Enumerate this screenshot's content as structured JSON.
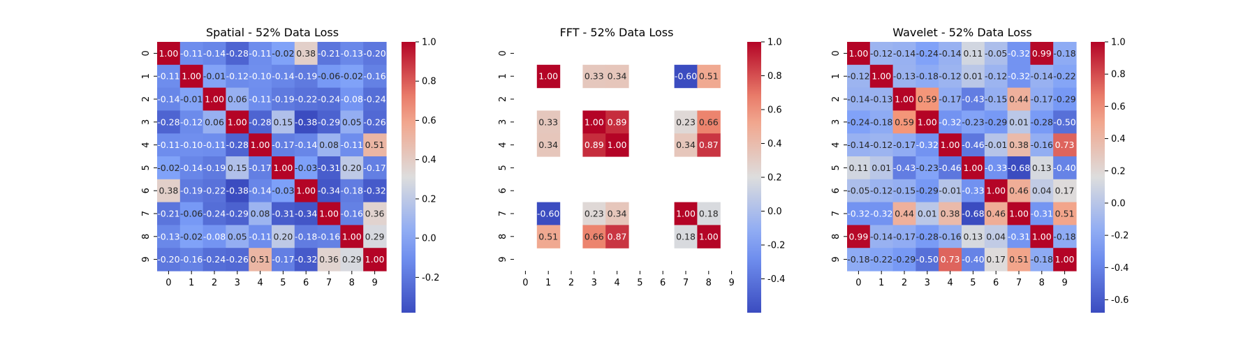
{
  "chart_data": [
    {
      "type": "heatmap",
      "title": "Spatial - 52% Data Loss",
      "x_categories": [
        "0",
        "1",
        "2",
        "3",
        "4",
        "5",
        "6",
        "7",
        "8",
        "9"
      ],
      "y_categories": [
        "0",
        "1",
        "2",
        "3",
        "4",
        "5",
        "6",
        "7",
        "8",
        "9"
      ],
      "colormap": "coolwarm",
      "vmin": -0.38,
      "vmax": 1.0,
      "colorbar_ticks": [
        "1.0",
        "0.8",
        "0.6",
        "0.4",
        "0.2",
        "0.0",
        "-0.2"
      ],
      "values": [
        [
          1.0,
          -0.11,
          -0.14,
          -0.28,
          -0.11,
          -0.02,
          0.38,
          -0.21,
          -0.13,
          -0.2
        ],
        [
          -0.11,
          1.0,
          -0.01,
          -0.12,
          -0.1,
          -0.14,
          -0.19,
          -0.06,
          -0.02,
          -0.16
        ],
        [
          -0.14,
          -0.01,
          1.0,
          0.06,
          -0.11,
          -0.19,
          -0.22,
          -0.24,
          -0.08,
          -0.24
        ],
        [
          -0.28,
          -0.12,
          0.06,
          1.0,
          -0.28,
          0.15,
          -0.38,
          -0.29,
          0.05,
          -0.26
        ],
        [
          -0.11,
          -0.1,
          -0.11,
          -0.28,
          1.0,
          -0.17,
          -0.14,
          0.08,
          -0.11,
          0.51
        ],
        [
          -0.02,
          -0.14,
          -0.19,
          0.15,
          -0.17,
          1.0,
          -0.03,
          -0.31,
          0.2,
          -0.17
        ],
        [
          0.38,
          -0.19,
          -0.22,
          -0.38,
          -0.14,
          -0.03,
          1.0,
          -0.34,
          -0.18,
          -0.32
        ],
        [
          -0.21,
          -0.06,
          -0.24,
          -0.29,
          0.08,
          -0.31,
          -0.34,
          1.0,
          -0.16,
          0.36
        ],
        [
          -0.13,
          -0.02,
          -0.08,
          0.05,
          -0.11,
          0.2,
          -0.18,
          -0.16,
          1.0,
          0.29
        ],
        [
          -0.2,
          -0.16,
          -0.24,
          -0.26,
          0.51,
          -0.17,
          -0.32,
          0.36,
          0.29,
          1.0
        ]
      ]
    },
    {
      "type": "heatmap",
      "title": "FFT - 52% Data Loss",
      "x_categories": [
        "0",
        "1",
        "2",
        "3",
        "4",
        "5",
        "6",
        "7",
        "8",
        "9"
      ],
      "y_categories": [
        "0",
        "1",
        "2",
        "3",
        "4",
        "5",
        "6",
        "7",
        "8",
        "9"
      ],
      "colormap": "coolwarm",
      "vmin": -0.6,
      "vmax": 1.0,
      "colorbar_ticks": [
        "1.0",
        "0.8",
        "0.6",
        "0.4",
        "0.2",
        "0.0",
        "-0.2",
        "-0.4"
      ],
      "values": [
        [
          null,
          null,
          null,
          null,
          null,
          null,
          null,
          null,
          null,
          null
        ],
        [
          null,
          1.0,
          null,
          0.33,
          0.34,
          null,
          null,
          -0.6,
          0.51,
          null
        ],
        [
          null,
          null,
          null,
          null,
          null,
          null,
          null,
          null,
          null,
          null
        ],
        [
          null,
          0.33,
          null,
          1.0,
          0.89,
          null,
          null,
          0.23,
          0.66,
          null
        ],
        [
          null,
          0.34,
          null,
          0.89,
          1.0,
          null,
          null,
          0.34,
          0.87,
          null
        ],
        [
          null,
          null,
          null,
          null,
          null,
          null,
          null,
          null,
          null,
          null
        ],
        [
          null,
          null,
          null,
          null,
          null,
          null,
          null,
          null,
          null,
          null
        ],
        [
          null,
          -0.6,
          null,
          0.23,
          0.34,
          null,
          null,
          1.0,
          0.18,
          null
        ],
        [
          null,
          0.51,
          null,
          0.66,
          0.87,
          null,
          null,
          0.18,
          1.0,
          null
        ],
        [
          null,
          null,
          null,
          null,
          null,
          null,
          null,
          null,
          null,
          null
        ]
      ]
    },
    {
      "type": "heatmap",
      "title": "Wavelet - 52% Data Loss",
      "x_categories": [
        "0",
        "1",
        "2",
        "3",
        "4",
        "5",
        "6",
        "7",
        "8",
        "9"
      ],
      "y_categories": [
        "0",
        "1",
        "2",
        "3",
        "4",
        "5",
        "6",
        "7",
        "8",
        "9"
      ],
      "colormap": "coolwarm",
      "vmin": -0.68,
      "vmax": 1.0,
      "colorbar_ticks": [
        "1.0",
        "0.8",
        "0.6",
        "0.4",
        "0.2",
        "0.0",
        "-0.2",
        "-0.4",
        "-0.6"
      ],
      "values": [
        [
          1.0,
          -0.12,
          -0.14,
          -0.24,
          -0.14,
          0.11,
          -0.05,
          -0.32,
          0.99,
          -0.18
        ],
        [
          -0.12,
          1.0,
          -0.13,
          -0.18,
          -0.12,
          0.01,
          -0.12,
          -0.32,
          -0.14,
          -0.22
        ],
        [
          -0.14,
          -0.13,
          1.0,
          0.59,
          -0.17,
          -0.43,
          -0.15,
          0.44,
          -0.17,
          -0.29
        ],
        [
          -0.24,
          -0.18,
          0.59,
          1.0,
          -0.32,
          -0.23,
          -0.29,
          0.01,
          -0.28,
          -0.5
        ],
        [
          -0.14,
          -0.12,
          -0.17,
          -0.32,
          1.0,
          -0.46,
          -0.01,
          0.38,
          -0.16,
          0.73
        ],
        [
          0.11,
          0.01,
          -0.43,
          -0.23,
          -0.46,
          1.0,
          -0.33,
          -0.68,
          0.13,
          -0.4
        ],
        [
          -0.05,
          -0.12,
          -0.15,
          -0.29,
          -0.01,
          -0.33,
          1.0,
          0.46,
          0.04,
          0.17
        ],
        [
          -0.32,
          -0.32,
          0.44,
          0.01,
          0.38,
          -0.68,
          0.46,
          1.0,
          -0.31,
          0.51
        ],
        [
          0.99,
          -0.14,
          -0.17,
          -0.28,
          -0.16,
          0.13,
          0.04,
          -0.31,
          1.0,
          -0.18
        ],
        [
          -0.18,
          -0.22,
          -0.29,
          -0.5,
          0.73,
          -0.4,
          0.17,
          0.51,
          -0.18,
          1.0
        ]
      ]
    }
  ]
}
